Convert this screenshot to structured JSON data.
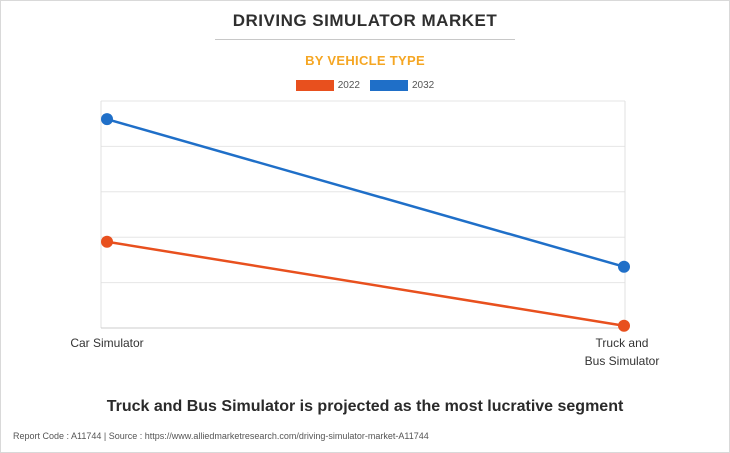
{
  "header": {
    "title": "DRIVING SIMULATOR MARKET",
    "subtitle": "BY VEHICLE TYPE"
  },
  "headline": "Truck and Bus Simulator is projected as the most lucrative segment",
  "footer": {
    "report_code": "Report Code : A11744",
    "separator": "|",
    "source": "Source : https://www.alliedmarketresearch.com/driving-simulator-market-A11744"
  },
  "colors": {
    "series_2022": "#e8501e",
    "series_2032": "#1f6fc8",
    "subtitle": "#f5a623",
    "grid": "#e6e6e6"
  },
  "chart_data": {
    "type": "line",
    "title": "DRIVING SIMULATOR MARKET",
    "subtitle": "BY VEHICLE TYPE",
    "categories": [
      "Car Simulator",
      "Truck and Bus Simulator"
    ],
    "category_label_lines": [
      [
        "Car Simulator"
      ],
      [
        "Truck and",
        "Bus Simulator"
      ]
    ],
    "series": [
      {
        "name": "2022",
        "values": [
          1.9,
          0.05
        ],
        "color": "#e8501e"
      },
      {
        "name": "2032",
        "values": [
          4.6,
          1.35
        ],
        "color": "#1f6fc8"
      }
    ],
    "ylim": [
      0,
      5
    ],
    "y_grid_count": 5,
    "y_tick_labels_shown": false,
    "grid": true,
    "legend_position": "top-center"
  }
}
